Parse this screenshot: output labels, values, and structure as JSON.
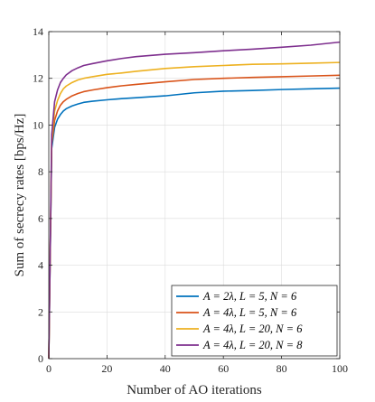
{
  "chart_data": {
    "type": "line",
    "xlabel": "Number of AO iterations",
    "ylabel": "Sum of secrecy rates [bps/Hz]",
    "xlim": [
      0,
      100
    ],
    "ylim": [
      0,
      14
    ],
    "xticks": [
      "0",
      "20",
      "40",
      "60",
      "80",
      "100"
    ],
    "yticks": [
      "0",
      "2",
      "4",
      "6",
      "8",
      "10",
      "12",
      "14"
    ],
    "grid": true,
    "legend_position": "bottom-right",
    "x": [
      0,
      1,
      2,
      3,
      4,
      5,
      6,
      8,
      10,
      12,
      15,
      20,
      25,
      30,
      40,
      50,
      60,
      70,
      80,
      90,
      100
    ],
    "series": [
      {
        "name": "A = 2λ, L = 5, N = 6",
        "color": "#0072BD",
        "values": [
          0,
          9.0,
          9.9,
          10.25,
          10.45,
          10.6,
          10.7,
          10.82,
          10.9,
          10.97,
          11.02,
          11.08,
          11.13,
          11.17,
          11.25,
          11.38,
          11.45,
          11.48,
          11.52,
          11.55,
          11.58
        ]
      },
      {
        "name": "A = 4λ, L = 5, N = 6",
        "color": "#D95319",
        "values": [
          0,
          9.2,
          10.2,
          10.6,
          10.85,
          11.0,
          11.1,
          11.25,
          11.35,
          11.43,
          11.5,
          11.6,
          11.68,
          11.74,
          11.85,
          11.95,
          12.0,
          12.04,
          12.07,
          12.1,
          12.13
        ]
      },
      {
        "name": "A = 4λ, L = 20, N = 6",
        "color": "#EDB120",
        "values": [
          0,
          9.4,
          10.6,
          11.05,
          11.35,
          11.55,
          11.67,
          11.82,
          11.93,
          12.0,
          12.07,
          12.17,
          12.23,
          12.3,
          12.42,
          12.5,
          12.55,
          12.6,
          12.62,
          12.65,
          12.68
        ]
      },
      {
        "name": "A = 4λ, L = 20, N = 8",
        "color": "#7E2F8E",
        "values": [
          0,
          9.6,
          11.0,
          11.5,
          11.82,
          12.0,
          12.15,
          12.33,
          12.45,
          12.55,
          12.63,
          12.75,
          12.85,
          12.93,
          13.03,
          13.1,
          13.18,
          13.25,
          13.33,
          13.42,
          13.55
        ]
      }
    ]
  }
}
